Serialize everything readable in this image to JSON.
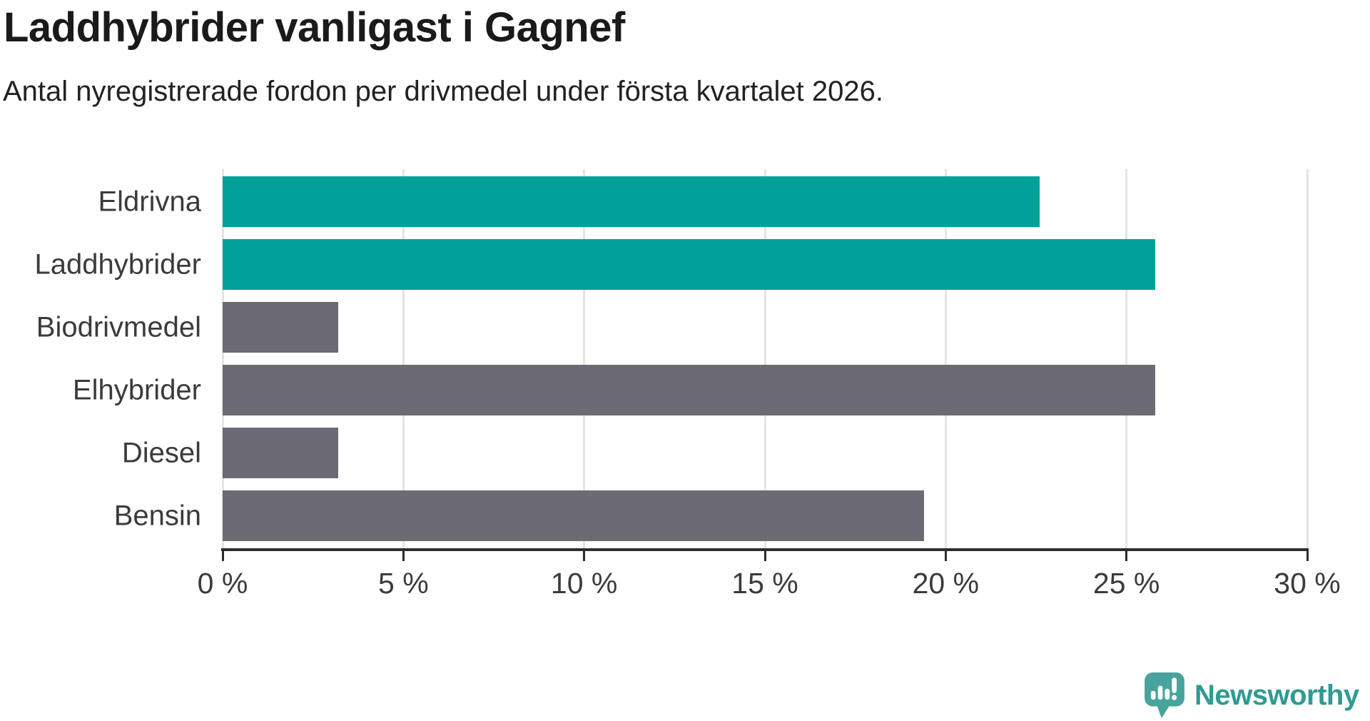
{
  "title": "Laddhybrider vanligast i Gagnef",
  "subtitle": "Antal nyregistrerade fordon per drivmedel under första kvartalet 2026.",
  "chart_data": {
    "type": "bar",
    "orientation": "horizontal",
    "title": "Laddhybrider vanligast i Gagnef",
    "subtitle": "Antal nyregistrerade fordon per drivmedel under första kvartalet 2026.",
    "categories": [
      "Eldrivna",
      "Laddhybrider",
      "Biodrivmedel",
      "Elhybrider",
      "Diesel",
      "Bensin"
    ],
    "values": [
      22.6,
      25.8,
      3.2,
      25.8,
      3.2,
      19.4
    ],
    "unit": "%",
    "xlim": [
      0,
      30
    ],
    "x_ticks": [
      0,
      5,
      10,
      15,
      20,
      25,
      30
    ],
    "x_tick_labels": [
      "0 %",
      "5 %",
      "10 %",
      "15 %",
      "20 %",
      "25 %",
      "30 %"
    ],
    "bar_colors": [
      "#00A19B",
      "#00A19B",
      "#6C6A72",
      "#6C6A72",
      "#6C6A72",
      "#6C6A72"
    ],
    "highlight_color": "#00A19B",
    "default_color": "#6C6A72",
    "gridline_color": "#E4E4E4",
    "axis_color": "#2E2E2E",
    "grid": true,
    "legend": false,
    "ylabel": "",
    "xlabel": ""
  },
  "branding": {
    "logo_text": "Newsworthy",
    "logo_text_color": "#2F9B91",
    "logo_icon_color": "#47A39B"
  }
}
